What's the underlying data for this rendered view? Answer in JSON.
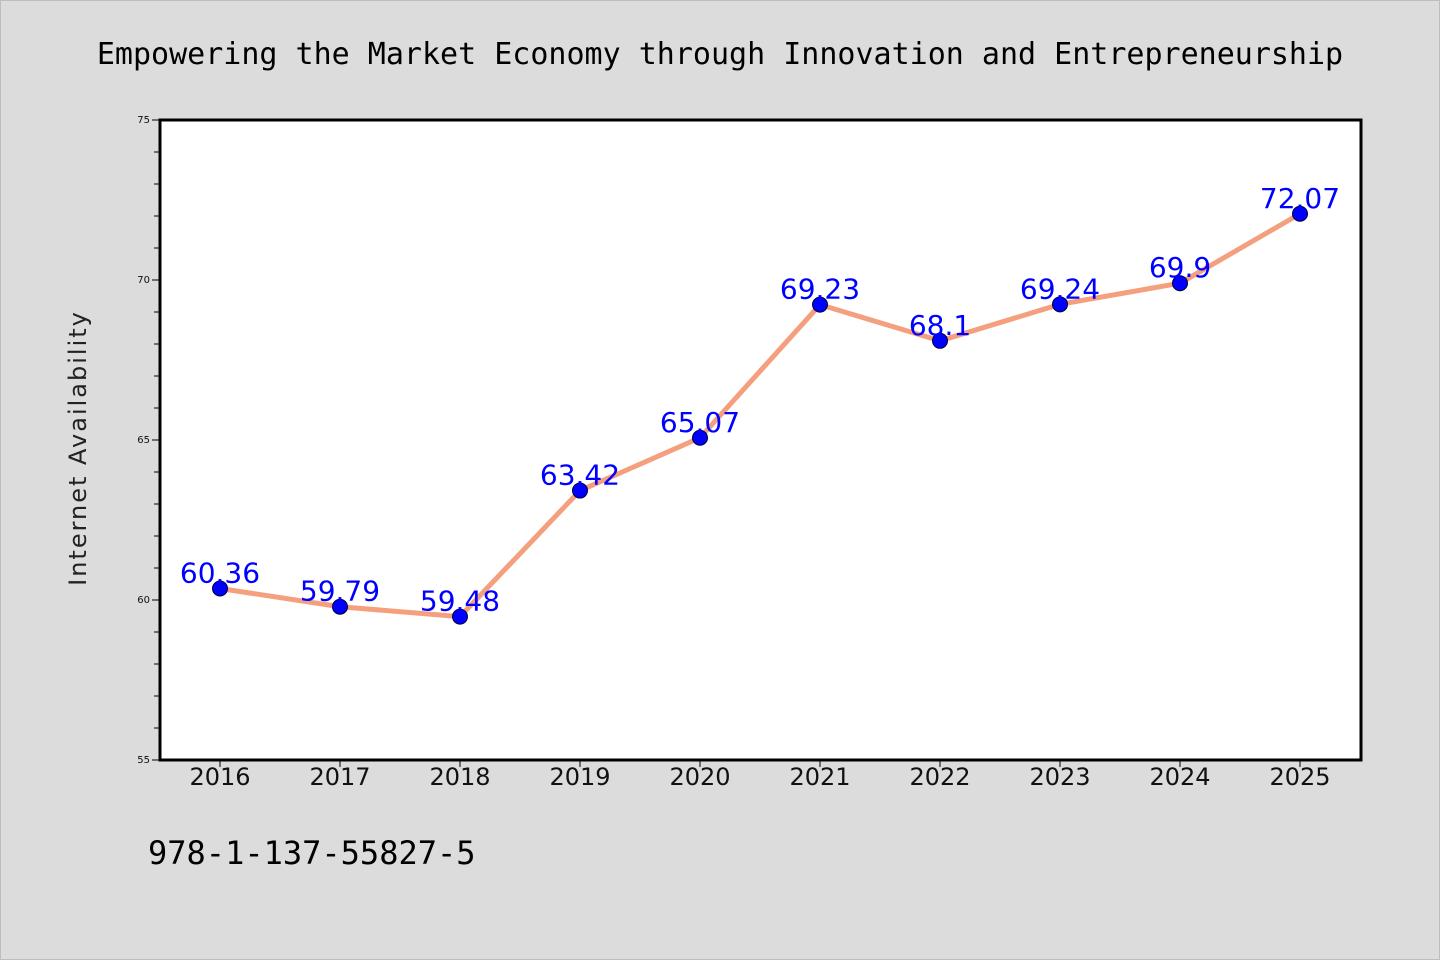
{
  "colors": {
    "background": "#dcdcdc",
    "plot_background": "#ffffff",
    "line": "#f4a07e",
    "marker": "#0000ff",
    "label": "#0000ff"
  },
  "isbn": "978-1-137-55827-5",
  "chart_data": {
    "type": "line",
    "title": "Empowering the Market Economy through Innovation and Entrepreneurship",
    "xlabel": "",
    "ylabel": "Internet Availability",
    "categories": [
      "2016",
      "2017",
      "2018",
      "2019",
      "2020",
      "2021",
      "2022",
      "2023",
      "2024",
      "2025"
    ],
    "series": [
      {
        "values": [
          60.36,
          59.79,
          59.48,
          63.42,
          65.07,
          69.23,
          68.1,
          69.24,
          69.9,
          72.07
        ]
      }
    ],
    "data_labels": [
      "60.36",
      "59.79",
      "59.48",
      "63.42",
      "65.07",
      "69.23",
      "68.1",
      "69.24",
      "69.9",
      "72.07"
    ],
    "ylim": [
      55,
      75
    ],
    "yticks": [
      55,
      60,
      65,
      70,
      75
    ],
    "y_minor_step": 1,
    "grid": false,
    "legend": "none"
  }
}
